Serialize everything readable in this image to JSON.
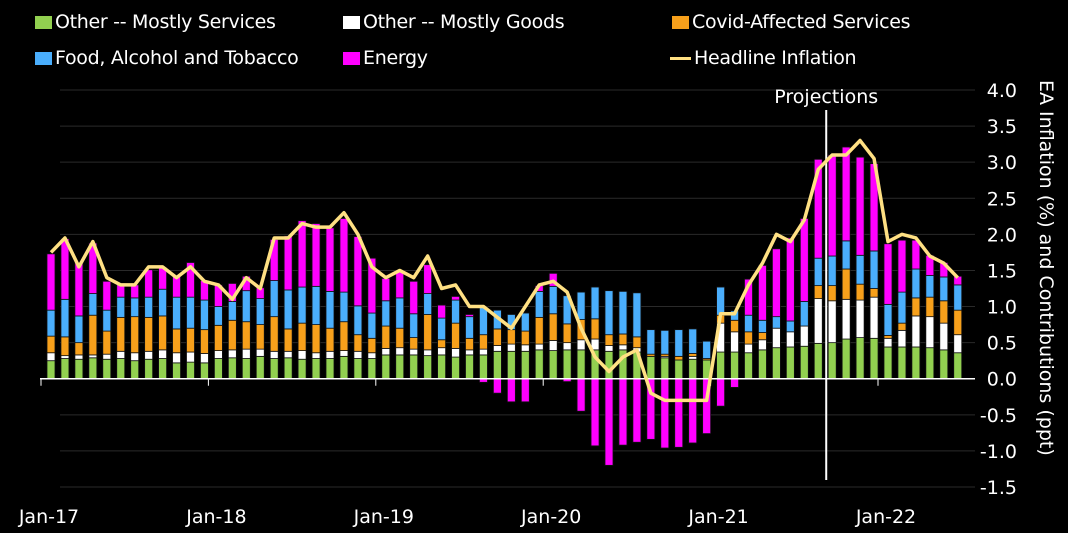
{
  "chart_data": {
    "type": "bar",
    "stacked": true,
    "title": "",
    "xlabel": "",
    "ylabel": "EA Inflation (%) and Contributions (ppt)",
    "ylim": [
      -1.5,
      4.0
    ],
    "yticks": [
      "4.0",
      "3.5",
      "3.0",
      "2.5",
      "2.0",
      "1.5",
      "1.0",
      "0.5",
      "0.0",
      "-0.5",
      "-1.0",
      "-1.5"
    ],
    "ytick_values": [
      4.0,
      3.5,
      3.0,
      2.5,
      2.0,
      1.5,
      1.0,
      0.5,
      0.0,
      -0.5,
      -1.0,
      -1.5
    ],
    "xticks": [
      "Jan-17",
      "Jan-18",
      "Jan-19",
      "Jan-20",
      "Jan-21",
      "Jan-22"
    ],
    "xtick_index": [
      0,
      12,
      24,
      36,
      48,
      60
    ],
    "grid": true,
    "legend_position": "top",
    "annotation": {
      "label": "Projections",
      "at_index": 55.5
    },
    "x": [
      "2017-01",
      "2017-02",
      "2017-03",
      "2017-04",
      "2017-05",
      "2017-06",
      "2017-07",
      "2017-08",
      "2017-09",
      "2017-10",
      "2017-11",
      "2017-12",
      "2018-01",
      "2018-02",
      "2018-03",
      "2018-04",
      "2018-05",
      "2018-06",
      "2018-07",
      "2018-08",
      "2018-09",
      "2018-10",
      "2018-11",
      "2018-12",
      "2019-01",
      "2019-02",
      "2019-03",
      "2019-04",
      "2019-05",
      "2019-06",
      "2019-07",
      "2019-08",
      "2019-09",
      "2019-10",
      "2019-11",
      "2019-12",
      "2020-01",
      "2020-02",
      "2020-03",
      "2020-04",
      "2020-05",
      "2020-06",
      "2020-07",
      "2020-08",
      "2020-09",
      "2020-10",
      "2020-11",
      "2020-12",
      "2021-01",
      "2021-02",
      "2021-03",
      "2021-04",
      "2021-05",
      "2021-06",
      "2021-07",
      "2021-08",
      "2021-09",
      "2021-10",
      "2021-11",
      "2021-12",
      "2022-01",
      "2022-02",
      "2022-03",
      "2022-04",
      "2022-05",
      "2022-06"
    ],
    "series": [
      {
        "name": "Other -- Mostly Services",
        "color": "#92d050",
        "type": "bar",
        "values": [
          0.25,
          0.28,
          0.27,
          0.29,
          0.27,
          0.28,
          0.25,
          0.27,
          0.28,
          0.22,
          0.23,
          0.22,
          0.28,
          0.29,
          0.28,
          0.31,
          0.28,
          0.29,
          0.27,
          0.28,
          0.28,
          0.31,
          0.28,
          0.28,
          0.33,
          0.33,
          0.33,
          0.32,
          0.33,
          0.3,
          0.33,
          0.33,
          0.38,
          0.38,
          0.38,
          0.4,
          0.39,
          0.4,
          0.4,
          0.4,
          0.38,
          0.4,
          0.37,
          0.31,
          0.29,
          0.26,
          0.27,
          0.26,
          0.37,
          0.37,
          0.36,
          0.4,
          0.43,
          0.44,
          0.45,
          0.49,
          0.5,
          0.55,
          0.57,
          0.56,
          0.44,
          0.44,
          0.44,
          0.43,
          0.4,
          0.36
        ]
      },
      {
        "name": "Other -- Mostly Goods",
        "color": "#ffffff",
        "type": "bar",
        "values": [
          0.11,
          0.04,
          0.06,
          0.04,
          0.07,
          0.1,
          0.11,
          0.11,
          0.12,
          0.14,
          0.14,
          0.13,
          0.11,
          0.11,
          0.13,
          0.1,
          0.1,
          0.09,
          0.12,
          0.08,
          0.1,
          0.08,
          0.1,
          0.08,
          0.09,
          0.1,
          0.08,
          0.08,
          0.1,
          0.12,
          0.07,
          0.08,
          0.08,
          0.1,
          0.09,
          0.08,
          0.14,
          0.1,
          0.14,
          0.15,
          0.08,
          0.07,
          0.06,
          0.0,
          0.02,
          0.0,
          0.04,
          0.0,
          0.4,
          0.28,
          0.12,
          0.14,
          0.27,
          0.21,
          0.28,
          0.62,
          0.58,
          0.55,
          0.52,
          0.57,
          0.12,
          0.23,
          0.43,
          0.43,
          0.37,
          0.25
        ]
      },
      {
        "name": "Covid-Affected Services",
        "color": "#f7a01b",
        "type": "bar",
        "values": [
          0.23,
          0.26,
          0.17,
          0.55,
          0.32,
          0.47,
          0.5,
          0.47,
          0.47,
          0.33,
          0.33,
          0.33,
          0.35,
          0.41,
          0.38,
          0.34,
          0.48,
          0.31,
          0.38,
          0.39,
          0.32,
          0.4,
          0.23,
          0.2,
          0.31,
          0.27,
          0.16,
          0.49,
          0.11,
          0.35,
          0.16,
          0.2,
          0.23,
          0.2,
          0.19,
          0.37,
          0.37,
          0.26,
          0.28,
          0.28,
          0.15,
          0.15,
          0.15,
          0.03,
          0.03,
          0.05,
          0.04,
          0.02,
          0.11,
          0.16,
          0.17,
          0.1,
          0.0,
          0.0,
          0.0,
          0.18,
          0.21,
          0.42,
          0.22,
          0.12,
          0.04,
          0.1,
          0.25,
          0.27,
          0.31,
          0.34
        ]
      },
      {
        "name": "Food, Alcohol and Tobacco",
        "color": "#4aaefc",
        "type": "bar",
        "values": [
          0.36,
          0.52,
          0.37,
          0.3,
          0.29,
          0.28,
          0.26,
          0.28,
          0.37,
          0.44,
          0.43,
          0.41,
          0.26,
          0.26,
          0.43,
          0.36,
          0.5,
          0.54,
          0.5,
          0.53,
          0.51,
          0.41,
          0.4,
          0.35,
          0.35,
          0.42,
          0.33,
          0.29,
          0.3,
          0.32,
          0.3,
          0.39,
          0.26,
          0.21,
          0.25,
          0.36,
          0.38,
          0.39,
          0.38,
          0.44,
          0.61,
          0.59,
          0.61,
          0.34,
          0.33,
          0.37,
          0.34,
          0.24,
          0.39,
          0.13,
          0.23,
          0.17,
          0.16,
          0.15,
          0.34,
          0.38,
          0.41,
          0.39,
          0.4,
          0.52,
          0.43,
          0.43,
          0.4,
          0.3,
          0.33,
          0.35
        ]
      },
      {
        "name": "Energy",
        "color": "#ff00ff",
        "type": "bar",
        "values": [
          0.78,
          0.84,
          0.74,
          0.7,
          0.4,
          0.19,
          0.18,
          0.38,
          0.3,
          0.29,
          0.48,
          0.27,
          0.3,
          0.25,
          0.2,
          0.15,
          0.57,
          0.75,
          0.92,
          0.87,
          0.88,
          1.02,
          0.96,
          0.76,
          0.31,
          0.38,
          0.45,
          0.4,
          0.18,
          0.05,
          0.03,
          -0.05,
          -0.2,
          -0.32,
          -0.32,
          0.08,
          0.18,
          -0.04,
          -0.45,
          -0.93,
          -1.2,
          -0.92,
          -0.88,
          -0.84,
          -0.96,
          -0.95,
          -0.89,
          -0.76,
          -0.38,
          -0.12,
          0.5,
          0.76,
          0.94,
          1.15,
          1.15,
          1.37,
          1.4,
          1.3,
          1.36,
          1.21,
          0.84,
          0.72,
          0.4,
          0.28,
          0.2,
          0.12
        ]
      },
      {
        "name": "Headline Inflation",
        "color": "#ffe083",
        "type": "line",
        "values": [
          1.75,
          1.95,
          1.55,
          1.9,
          1.4,
          1.3,
          1.3,
          1.55,
          1.55,
          1.4,
          1.55,
          1.35,
          1.3,
          1.1,
          1.4,
          1.25,
          1.95,
          1.95,
          2.15,
          2.1,
          2.1,
          2.3,
          2.0,
          1.55,
          1.4,
          1.5,
          1.4,
          1.7,
          1.25,
          1.3,
          1.0,
          1.0,
          0.85,
          0.7,
          1.0,
          1.3,
          1.35,
          1.2,
          0.7,
          0.3,
          0.1,
          0.3,
          0.4,
          -0.2,
          -0.3,
          -0.3,
          -0.3,
          -0.3,
          0.9,
          0.9,
          1.3,
          1.6,
          2.0,
          1.9,
          2.2,
          2.9,
          3.1,
          3.1,
          3.3,
          3.05,
          1.9,
          2.0,
          1.95,
          1.7,
          1.6,
          1.4
        ]
      }
    ]
  }
}
